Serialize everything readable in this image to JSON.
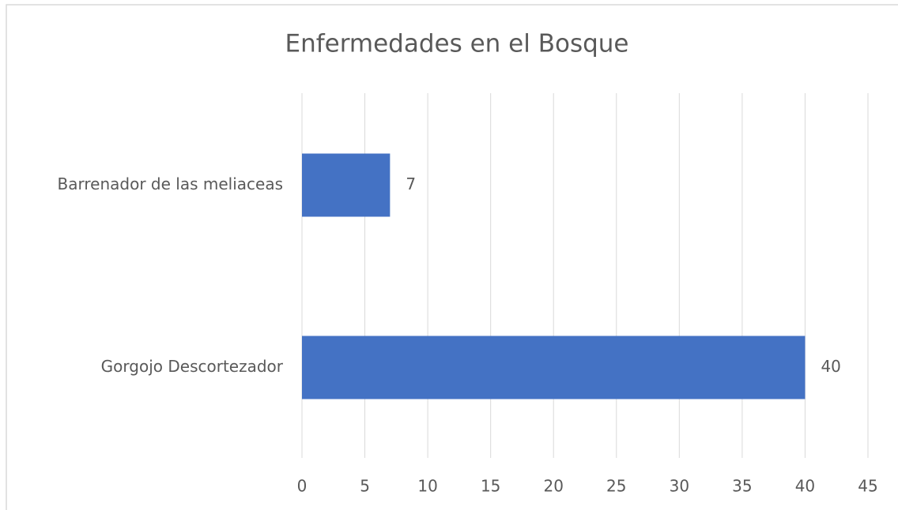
{
  "chart_data": {
    "type": "bar",
    "orientation": "horizontal",
    "title": "Enfermedades en el Bosque",
    "categories": [
      "Barrenador de las meliaceas",
      "Gorgojo Descortezador"
    ],
    "values": [
      7,
      40
    ],
    "color": "#4472c4",
    "xlim": [
      0,
      45
    ],
    "xticks": [
      0,
      5,
      10,
      15,
      20,
      25,
      30,
      35,
      40,
      45
    ],
    "grid": true
  }
}
